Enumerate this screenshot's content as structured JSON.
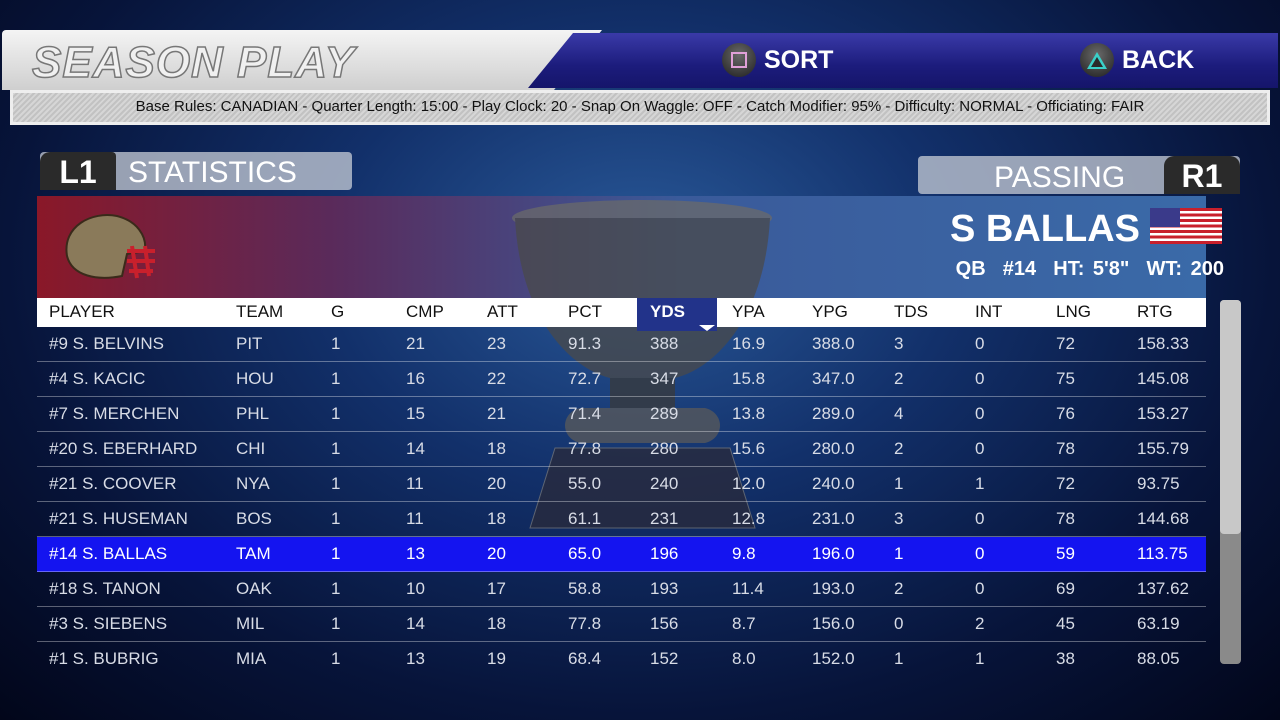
{
  "header": {
    "title": "SEASON PLAY",
    "sort_label": "SORT",
    "back_label": "BACK"
  },
  "rules_text": "Base Rules: CANADIAN - Quarter Length: 15:00 - Play Clock: 20 - Snap On Waggle: OFF - Catch Modifier: 95% - Difficulty: NORMAL - Officiating: FAIR",
  "tabs": {
    "left_key": "L1",
    "left_label": "STATISTICS",
    "right_key": "R1",
    "right_label": "PASSING"
  },
  "player": {
    "name": "S BALLAS",
    "info": "QB  #14  HT: 5'8\"  WT: 200",
    "flag": "us-flag-icon",
    "helmet": "helmet-icon"
  },
  "colors": {
    "selected_row": "#1414f0",
    "sorted_header": "#22338a"
  },
  "table": {
    "sorted_column": "YDS",
    "selected_row_index": 6,
    "columns": [
      "PLAYER",
      "TEAM",
      "G",
      "CMP",
      "ATT",
      "PCT",
      "YDS",
      "YPA",
      "YPG",
      "TDS",
      "INT",
      "LNG",
      "RTG"
    ],
    "rows": [
      [
        "#9 S. BELVINS",
        "PIT",
        "1",
        "21",
        "23",
        "91.3",
        "388",
        "16.9",
        "388.0",
        "3",
        "0",
        "72",
        "158.33"
      ],
      [
        "#4 S. KACIC",
        "HOU",
        "1",
        "16",
        "22",
        "72.7",
        "347",
        "15.8",
        "347.0",
        "2",
        "0",
        "75",
        "145.08"
      ],
      [
        "#7 S. MERCHEN",
        "PHL",
        "1",
        "15",
        "21",
        "71.4",
        "289",
        "13.8",
        "289.0",
        "4",
        "0",
        "76",
        "153.27"
      ],
      [
        "#20 S. EBERHARD",
        "CHI",
        "1",
        "14",
        "18",
        "77.8",
        "280",
        "15.6",
        "280.0",
        "2",
        "0",
        "78",
        "155.79"
      ],
      [
        "#21 S. COOVER",
        "NYA",
        "1",
        "11",
        "20",
        "55.0",
        "240",
        "12.0",
        "240.0",
        "1",
        "1",
        "72",
        "93.75"
      ],
      [
        "#21 S. HUSEMAN",
        "BOS",
        "1",
        "11",
        "18",
        "61.1",
        "231",
        "12.8",
        "231.0",
        "3",
        "0",
        "78",
        "144.68"
      ],
      [
        "#14 S. BALLAS",
        "TAM",
        "1",
        "13",
        "20",
        "65.0",
        "196",
        "9.8",
        "196.0",
        "1",
        "0",
        "59",
        "113.75"
      ],
      [
        "#18 S. TANON",
        "OAK",
        "1",
        "10",
        "17",
        "58.8",
        "193",
        "11.4",
        "193.0",
        "2",
        "0",
        "69",
        "137.62"
      ],
      [
        "#3 S. SIEBENS",
        "MIL",
        "1",
        "14",
        "18",
        "77.8",
        "156",
        "8.7",
        "156.0",
        "0",
        "2",
        "45",
        "63.19"
      ],
      [
        "#1 S. BUBRIG",
        "MIA",
        "1",
        "13",
        "19",
        "68.4",
        "152",
        "8.0",
        "152.0",
        "1",
        "1",
        "38",
        "88.05"
      ]
    ]
  }
}
